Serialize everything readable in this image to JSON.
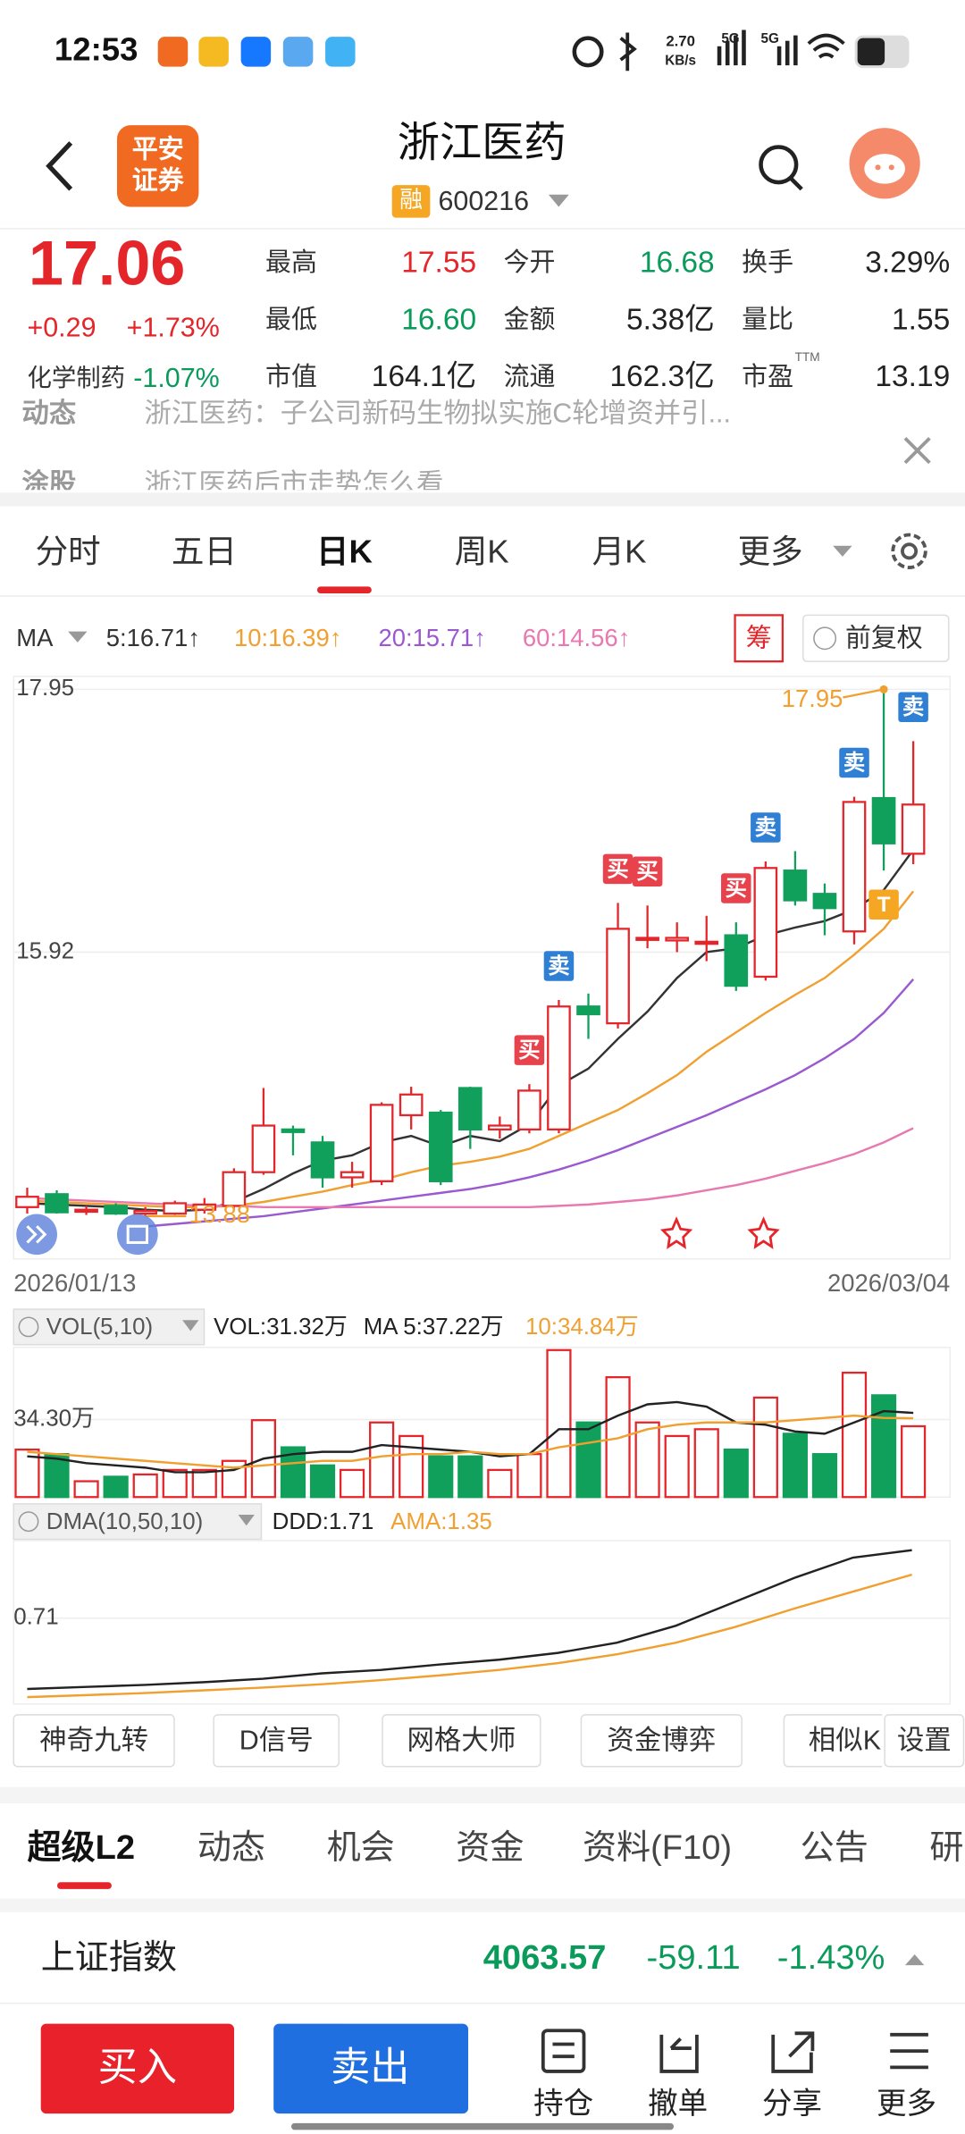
{
  "status_bar": {
    "time": "12:53",
    "speed": "2.70",
    "speed_unit": "KB/s",
    "net1": "5G",
    "net2": "5G"
  },
  "header": {
    "logo": [
      "平安",
      "证券"
    ],
    "title": "浙江医药",
    "badge": "融",
    "code": "600216"
  },
  "quote": {
    "price": "17.06",
    "change": "+0.29",
    "change_pct": "+1.73%",
    "sector": "化学制药",
    "sector_pct": "-1.07%",
    "ttm": "TTM",
    "stats": [
      [
        {
          "label": "最高",
          "value": "17.55",
          "color": "#e4262b"
        },
        {
          "label": "今开",
          "value": "16.68",
          "color": "#0a9b5b"
        },
        {
          "label": "换手",
          "value": "3.29%",
          "color": "#222222"
        }
      ],
      [
        {
          "label": "最低",
          "value": "16.60",
          "color": "#0a9b5b"
        },
        {
          "label": "金额",
          "value": "5.38亿",
          "color": "#222222"
        },
        {
          "label": "量比",
          "value": "1.55",
          "color": "#222222"
        }
      ],
      [
        {
          "label": "市值",
          "value": "164.1亿",
          "color": "#222222"
        },
        {
          "label": "流通",
          "value": "162.3亿",
          "color": "#222222"
        },
        {
          "label": "市盈",
          "value": "13.19",
          "color": "#222222"
        }
      ]
    ]
  },
  "news": [
    {
      "tag": "动态",
      "text": "浙江医药：子公司新码生物拟实施C轮增资并引..."
    },
    {
      "tag": "涂股",
      "text": "浙江医药后市走势怎么看"
    }
  ],
  "period_tabs": {
    "items": [
      "分时",
      "五日",
      "日K",
      "周K",
      "月K",
      "更多"
    ],
    "active": 2
  },
  "kline": {
    "type": "candlestick",
    "indicator": "MA",
    "chip": "筹",
    "adjust": "前复权",
    "categories": [
      "2026/01/13",
      null,
      null,
      null,
      null,
      null,
      null,
      null,
      null,
      null,
      null,
      null,
      null,
      null,
      null,
      null,
      null,
      null,
      null,
      null,
      null,
      null,
      null,
      null,
      null,
      null,
      null,
      null,
      null,
      null,
      "2026/03/04"
    ],
    "ylim": [
      13.55,
      18.05
    ],
    "yticks": [
      15.92,
      17.95
    ],
    "up_color": "#e4262b",
    "down_color": "#11a05b",
    "annotation_color": "#f0a030",
    "annotations": {
      "max": "17.95",
      "min": "13.88"
    },
    "open": [
      13.95,
      14.05,
      13.92,
      13.96,
      13.9,
      13.9,
      13.93,
      13.96,
      14.22,
      14.55,
      14.45,
      14.18,
      14.15,
      14.66,
      14.68,
      14.87,
      14.55,
      14.55,
      14.55,
      15.5,
      15.37,
      16.03,
      16.01,
      15.99,
      16.05,
      15.73,
      16.55,
      16.37,
      16.08,
      17.11,
      16.68
    ],
    "high": [
      14.1,
      14.08,
      13.96,
      13.98,
      13.95,
      14.0,
      14.02,
      14.25,
      14.87,
      14.58,
      14.5,
      14.3,
      14.76,
      14.88,
      14.7,
      14.88,
      14.65,
      14.9,
      15.55,
      15.6,
      16.3,
      16.28,
      16.15,
      16.2,
      16.15,
      16.62,
      16.7,
      16.45,
      17.12,
      17.95,
      17.55
    ],
    "low": [
      13.9,
      13.9,
      13.89,
      13.89,
      13.88,
      13.89,
      13.9,
      13.93,
      14.2,
      14.35,
      14.1,
      14.1,
      14.12,
      14.55,
      14.12,
      14.4,
      14.48,
      14.52,
      14.52,
      15.25,
      15.33,
      15.95,
      15.92,
      15.85,
      15.62,
      15.7,
      16.28,
      16.05,
      15.98,
      16.55,
      16.6
    ],
    "close": [
      14.03,
      13.91,
      13.93,
      13.9,
      13.92,
      13.98,
      13.97,
      14.22,
      14.58,
      14.53,
      14.18,
      14.22,
      14.74,
      14.82,
      14.15,
      14.55,
      14.58,
      14.85,
      15.5,
      15.44,
      16.1,
      16.03,
      16.03,
      16.0,
      15.66,
      16.57,
      16.32,
      16.26,
      17.08,
      16.76,
      17.06
    ],
    "signals": [
      null,
      null,
      null,
      null,
      null,
      null,
      null,
      null,
      null,
      null,
      null,
      null,
      null,
      null,
      null,
      null,
      null,
      {
        "text": "买",
        "color": "#e8424c"
      },
      {
        "text": "卖",
        "color": "#2f7fd4"
      },
      null,
      {
        "text": "买",
        "color": "#e8424c"
      },
      {
        "text": "买",
        "color": "#e8424c"
      },
      null,
      null,
      {
        "text": "买",
        "color": "#e8424c"
      },
      {
        "text": "卖",
        "color": "#2f7fd4"
      },
      null,
      null,
      {
        "text": "卖",
        "color": "#2f7fd4"
      },
      {
        "text": "T",
        "color": "#f5a623"
      },
      {
        "text": "卖",
        "color": "#2f7fd4"
      }
    ],
    "series": [
      {
        "label": "5:16.71↑",
        "color": "#333333",
        "values": [
          13.98,
          13.97,
          13.96,
          13.95,
          13.93,
          13.92,
          13.93,
          13.99,
          14.09,
          14.21,
          14.31,
          14.35,
          14.45,
          14.5,
          14.42,
          14.5,
          14.46,
          14.59,
          14.89,
          15.02,
          15.25,
          15.46,
          15.72,
          15.92,
          15.95,
          16.05,
          16.11,
          16.16,
          16.25,
          16.4,
          16.71
        ]
      },
      {
        "label": "10:16.39↑",
        "color": "#f0a030",
        "values": [
          14.0,
          13.99,
          13.98,
          13.97,
          13.96,
          13.95,
          13.95,
          13.96,
          13.99,
          14.03,
          14.07,
          14.12,
          14.16,
          14.22,
          14.27,
          14.3,
          14.34,
          14.4,
          14.5,
          14.6,
          14.7,
          14.83,
          14.97,
          15.15,
          15.3,
          15.45,
          15.59,
          15.72,
          15.9,
          16.1,
          16.39
        ]
      },
      {
        "label": "20:15.71↑",
        "color": "#9b59d0",
        "values": [
          null,
          null,
          null,
          null,
          13.8,
          13.82,
          13.84,
          13.86,
          13.88,
          13.91,
          13.94,
          13.97,
          14.0,
          14.03,
          14.06,
          14.09,
          14.13,
          14.18,
          14.24,
          14.31,
          14.39,
          14.48,
          14.57,
          14.66,
          14.76,
          14.86,
          14.97,
          15.1,
          15.25,
          15.45,
          15.71
        ]
      },
      {
        "label": "60:14.56↑",
        "color": "#e879b0",
        "values": [
          14.02,
          14.01,
          14.0,
          13.99,
          13.98,
          13.97,
          13.96,
          13.96,
          13.95,
          13.95,
          13.95,
          13.95,
          13.95,
          13.95,
          13.95,
          13.95,
          13.95,
          13.95,
          13.96,
          13.97,
          13.99,
          14.01,
          14.04,
          14.08,
          14.12,
          14.17,
          14.23,
          14.29,
          14.36,
          14.45,
          14.56
        ]
      }
    ]
  },
  "volume": {
    "type": "bar",
    "title": "VOL(5,10)",
    "readout": "VOL:31.32万",
    "ylim": [
      0,
      66.2
    ],
    "yticks": [
      {
        "value": 34.3,
        "label": "34.30万"
      }
    ],
    "values": [
      21,
      19,
      7,
      9,
      10,
      12,
      12,
      16,
      34,
      22,
      14,
      12,
      33,
      27,
      18,
      18,
      12,
      19,
      65,
      33,
      53,
      33,
      27,
      30,
      21,
      44,
      28,
      19,
      55,
      45,
      31.32
    ],
    "series": [
      {
        "label": "MA 5:37.22万",
        "color": "#222222",
        "values": [
          18,
          17,
          15,
          14,
          13,
          11,
          11,
          12,
          17,
          19,
          20,
          20,
          23,
          22,
          21,
          20,
          18,
          19,
          30,
          30,
          36,
          41,
          42,
          40,
          33,
          32,
          29,
          28,
          33,
          38,
          37.22
        ]
      },
      {
        "label": "10:34.84万",
        "color": "#f0a030",
        "values": [
          20,
          19,
          18,
          17,
          16,
          15,
          14,
          13,
          14,
          15,
          16,
          16,
          18,
          19,
          19,
          20,
          19,
          19,
          22,
          24,
          26,
          30,
          32,
          33,
          33,
          33,
          34,
          35,
          36,
          35,
          34.84
        ]
      }
    ]
  },
  "dma": {
    "type": "line",
    "title": "DMA(10,50,10)",
    "ylim": [
      -0.55,
      1.85
    ],
    "yticks": [
      0.71
    ],
    "series": [
      {
        "label": "DDD:1.71",
        "color": "#222222",
        "values": [
          -0.33,
          -0.3,
          -0.27,
          -0.23,
          -0.18,
          -0.1,
          -0.05,
          0.03,
          0.1,
          0.2,
          0.35,
          0.6,
          0.95,
          1.3,
          1.6,
          1.71
        ]
      },
      {
        "label": "AMA:1.35",
        "color": "#f0a030",
        "values": [
          -0.45,
          -0.42,
          -0.39,
          -0.35,
          -0.31,
          -0.26,
          -0.2,
          -0.13,
          -0.05,
          0.05,
          0.18,
          0.35,
          0.58,
          0.85,
          1.1,
          1.35
        ]
      }
    ]
  },
  "tools": [
    "神奇九转",
    "D信号",
    "网格大师",
    "资金博弈",
    "相似K",
    "设置"
  ],
  "info_tabs": {
    "items": [
      "超级L2",
      "动态",
      "机会",
      "资金",
      "资料(F10)",
      "公告",
      "研"
    ],
    "active": 0
  },
  "index_bar": {
    "name": "上证指数",
    "value": "4063.57",
    "change": "-59.11",
    "change_pct": "-1.43%"
  },
  "bottom_bar": {
    "buy": "买入",
    "sell": "卖出",
    "actions": [
      "持仓",
      "撤单",
      "分享",
      "更多"
    ]
  }
}
